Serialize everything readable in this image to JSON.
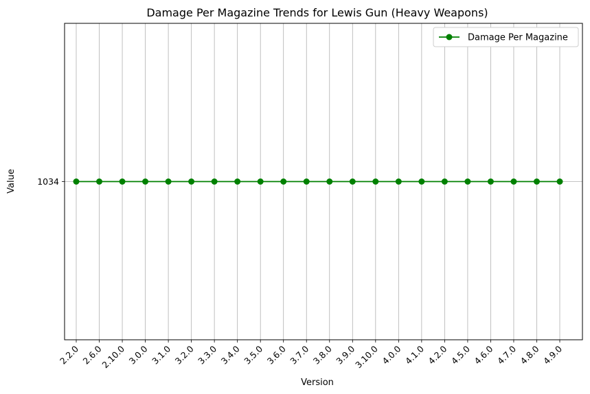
{
  "chart_data": {
    "type": "line",
    "title": "Damage Per Magazine Trends for Lewis Gun (Heavy Weapons)",
    "xlabel": "Version",
    "ylabel": "Value",
    "categories": [
      "2.2.0",
      "2.6.0",
      "2.10.0",
      "3.0.0",
      "3.1.0",
      "3.2.0",
      "3.3.0",
      "3.4.0",
      "3.5.0",
      "3.6.0",
      "3.7.0",
      "3.8.0",
      "3.9.0",
      "3.10.0",
      "4.0.0",
      "4.1.0",
      "4.2.0",
      "4.5.0",
      "4.6.0",
      "4.7.0",
      "4.8.0",
      "4.9.0"
    ],
    "yticks": [
      "1034"
    ],
    "ylim": [
      1033,
      1035
    ],
    "grid": true,
    "legend_position": "top-right",
    "series": [
      {
        "name": "Damage Per Magazine",
        "color": "#008000",
        "marker": "circle",
        "values": [
          1034,
          1034,
          1034,
          1034,
          1034,
          1034,
          1034,
          1034,
          1034,
          1034,
          1034,
          1034,
          1034,
          1034,
          1034,
          1034,
          1034,
          1034,
          1034,
          1034,
          1034,
          1034
        ]
      }
    ]
  }
}
